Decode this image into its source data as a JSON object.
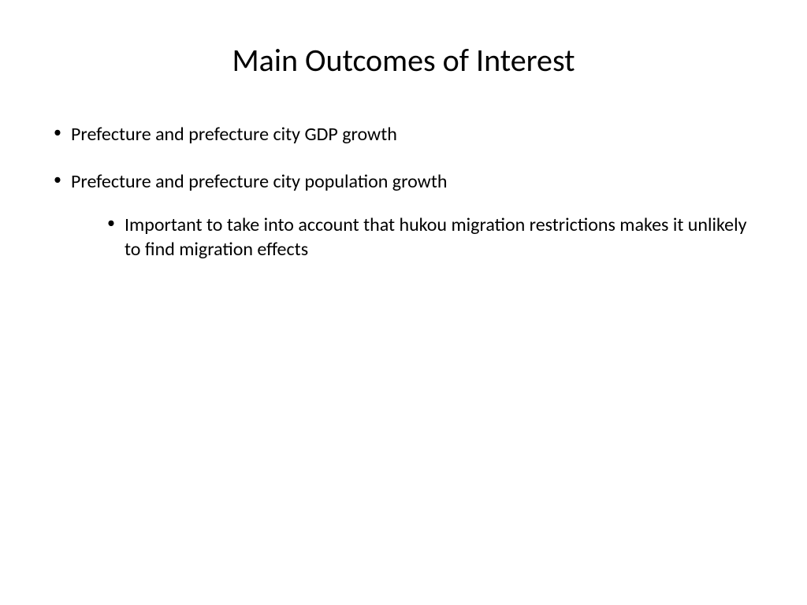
{
  "slide": {
    "title": "Main Outcomes of Interest",
    "bullets": [
      {
        "text": "Prefecture and prefecture city GDP growth"
      },
      {
        "text": "Prefecture and prefecture city population growth",
        "sub": [
          {
            "text": "Important to take into account that hukou migration restrictions makes it unlikely to find migration effects"
          }
        ]
      }
    ],
    "styling": {
      "background_color": "#ffffff",
      "text_color": "#000000",
      "title_fontsize": 40,
      "body_fontsize": 24,
      "font_family": "Calibri",
      "bullet_char": "•"
    }
  }
}
